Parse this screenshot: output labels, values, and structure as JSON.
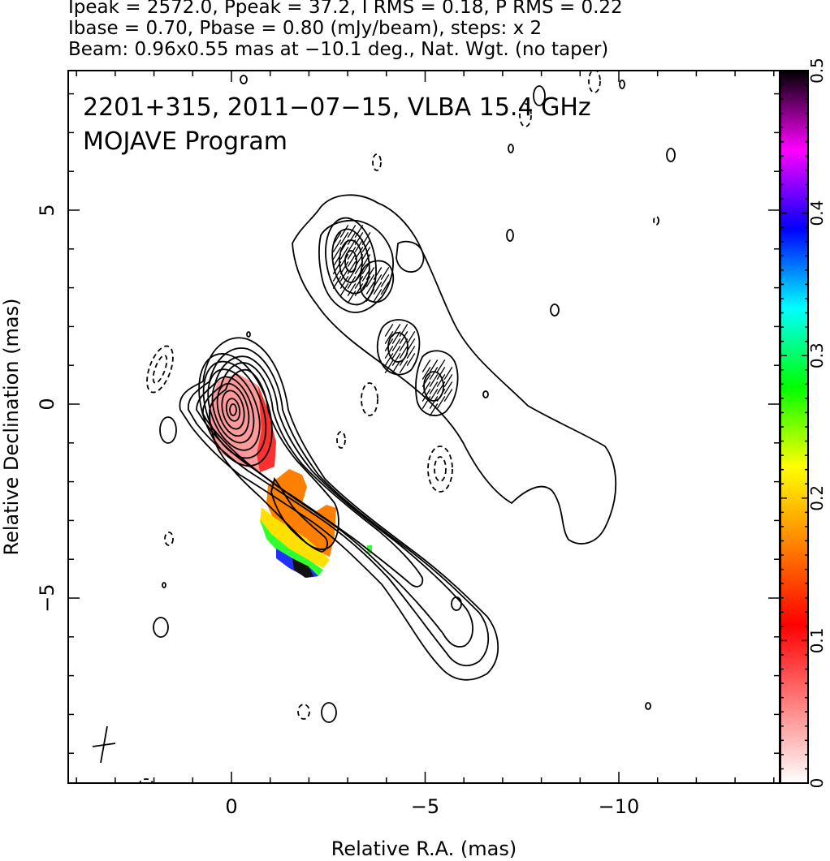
{
  "header": {
    "line1": "Ipeak = 2572.0, Ppeak = 37.2, I RMS = 0.18, P RMS = 0.22",
    "line2": "Ibase = 0.70, Pbase = 0.80 (mJy/beam), steps: x 2",
    "line3": "Beam: 0.96x0.55 mas at −10.1 deg., Nat. Wgt. (no taper)"
  },
  "annotation": {
    "line1": "2201+315, 2011−07−15, VLBA 15.4 GHz",
    "line2": "MOJAVE Program"
  },
  "chart_data": {
    "type": "heatmap",
    "title": "2201+315, 2011−07−15, VLBA 15.4 GHz",
    "subtitle": "MOJAVE Program",
    "xlabel": "Relative R.A. (mas)",
    "ylabel": "Relative Declination (mas)",
    "xlim": [
      4.2,
      -14.2
    ],
    "ylim": [
      -9.8,
      8.6
    ],
    "x_ticks": [
      0,
      -5,
      -10
    ],
    "x_tick_labels": [
      "0",
      "−5",
      "−10"
    ],
    "y_ticks": [
      5,
      0,
      -5
    ],
    "y_tick_labels": [
      "5",
      "0",
      "−5"
    ],
    "colorbar": {
      "range": [
        0,
        0.5
      ],
      "ticks": [
        0,
        0.1,
        0.2,
        0.3,
        0.4,
        0.5
      ],
      "tick_labels": [
        "0",
        "0.1",
        "0.2",
        "0.3",
        "0.4",
        "0.5"
      ],
      "stops": [
        "#ffffff",
        "#ff8080",
        "#ff0000",
        "#ff8000",
        "#ffff00",
        "#00ff00",
        "#00ffff",
        "#0000ff",
        "#ff00ff",
        "#000000"
      ]
    },
    "core": {
      "x": 0.0,
      "y": -0.3
    },
    "jet_axis": [
      [
        0.0,
        -0.3
      ],
      [
        -2.5,
        -3.5
      ],
      [
        -5.5,
        -7.5
      ]
    ],
    "beam": {
      "major_mas": 0.96,
      "minor_mas": 0.55,
      "pa_deg": -10.1,
      "center": [
        3.3,
        -8.9
      ]
    },
    "contour_base_mjy": 0.7,
    "contour_step": 2,
    "i_peak_mjy": 2572.0,
    "p_peak_mjy": 37.2
  }
}
